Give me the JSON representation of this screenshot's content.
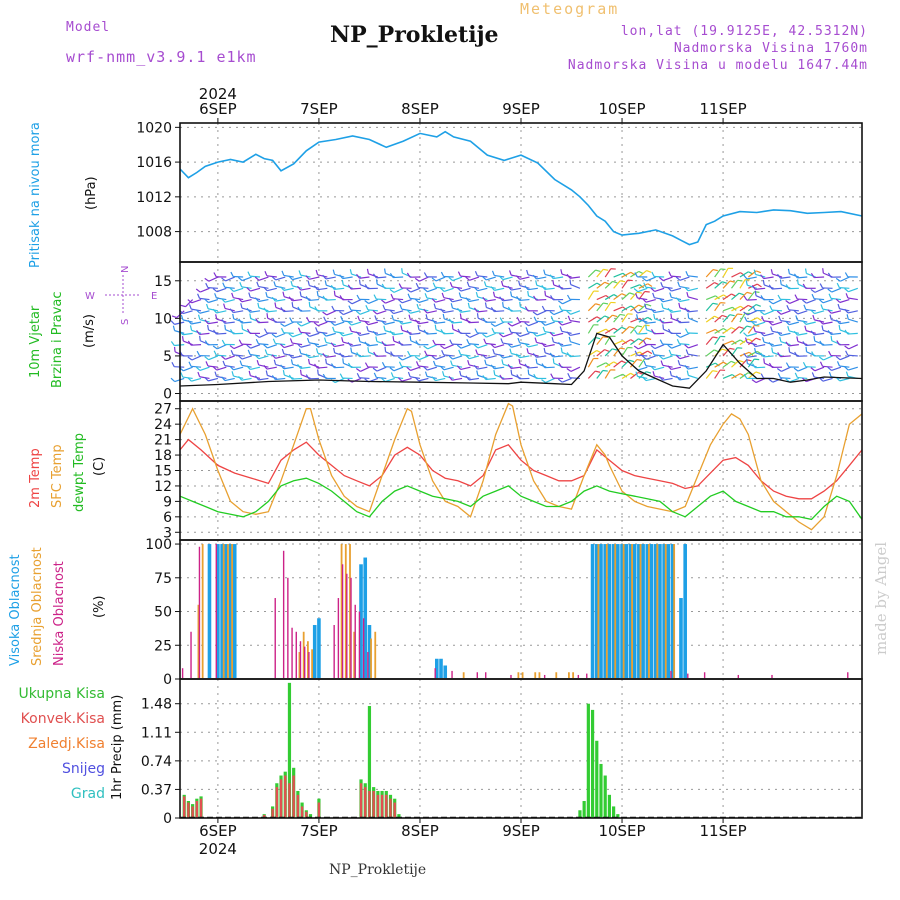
{
  "header": {
    "title": "NP_Prokletije",
    "model_label": "Model",
    "model_name": "wrf-nmm_v3.9.1 e1km",
    "meteogram_label": "Meteogram",
    "lonlat": "lon,lat (19.9125E, 42.5312N)",
    "elevation": "Nadmorska Visina 1760m",
    "model_elevation": "Nadmorska Visina u modelu 1647.44m",
    "watermark": "made by Angel",
    "footer": "NP_Prokletije"
  },
  "colors": {
    "pressure": "#1ea0e6",
    "temp2m": "#ee4444",
    "sfc": "#e8a030",
    "dewpt": "#22cc22",
    "high_cloud": "#1ea0e6",
    "mid_cloud": "#e8a030",
    "low_cloud": "#cc2288",
    "total_precip": "#33cc33",
    "conv_precip": "#e05050"
  },
  "x_axis": {
    "year": "2024",
    "day_ticks": [
      "6SEP",
      "7SEP",
      "8SEP",
      "9SEP",
      "10SEP",
      "11SEP"
    ],
    "range_hours": [
      -9,
      153
    ],
    "tick_hours": [
      0,
      24,
      48,
      72,
      96,
      120
    ]
  },
  "compass": {
    "n": "N",
    "s": "S",
    "e": "E",
    "w": "W"
  },
  "chart_data": [
    {
      "type": "line",
      "panel": "pressure",
      "ylabel_main": "Pritisak na nivou mora",
      "ylabel_unit": "(hPa)",
      "ylim": [
        1004.5,
        1020.5
      ],
      "yticks": [
        1008,
        1012,
        1016,
        1020
      ],
      "series": [
        {
          "name": "Pritisak na nivou mora",
          "x": [
            -9,
            -7,
            -5,
            -3,
            0,
            3,
            6,
            9,
            11,
            13,
            15,
            18,
            21,
            24,
            28,
            32,
            36,
            40,
            44,
            48,
            52,
            54,
            56,
            60,
            64,
            68,
            72,
            76,
            80,
            84,
            86,
            88,
            90,
            92,
            94,
            96,
            100,
            104,
            108,
            110,
            112,
            114,
            116,
            118,
            120,
            124,
            128,
            132,
            136,
            140,
            144,
            148,
            153
          ],
          "y": [
            1015.2,
            1014.2,
            1014.8,
            1015.5,
            1016.0,
            1016.3,
            1016.0,
            1016.9,
            1016.4,
            1016.2,
            1015.0,
            1015.8,
            1017.3,
            1018.3,
            1018.6,
            1019.0,
            1018.6,
            1017.7,
            1018.4,
            1019.3,
            1018.9,
            1019.5,
            1018.9,
            1018.4,
            1016.8,
            1016.2,
            1016.8,
            1015.9,
            1014.0,
            1012.8,
            1012.0,
            1011.0,
            1009.8,
            1009.2,
            1008.0,
            1007.6,
            1007.8,
            1008.2,
            1007.5,
            1007.0,
            1006.5,
            1006.8,
            1008.8,
            1009.2,
            1009.8,
            1010.3,
            1010.2,
            1010.5,
            1010.4,
            1010.1,
            1010.2,
            1010.3,
            1009.8
          ]
        }
      ]
    },
    {
      "type": "line",
      "panel": "wind",
      "ylabel_main": "10m Vjetar",
      "ylabel_sub": "Brzina i Pravac",
      "ylabel_unit": "(m/s)",
      "ylim": [
        -1,
        17.5
      ],
      "yticks": [
        0,
        5,
        10,
        15
      ],
      "series": [
        {
          "name": "wind_speed",
          "x": [
            -9,
            0,
            12,
            24,
            36,
            48,
            60,
            69,
            72,
            80,
            84,
            87,
            90,
            93,
            96,
            100,
            104,
            108,
            112,
            116,
            120,
            124,
            128,
            132,
            136,
            140,
            144,
            153
          ],
          "y": [
            1.0,
            1.2,
            1.6,
            1.8,
            1.6,
            1.5,
            1.4,
            1.3,
            1.5,
            1.3,
            1.2,
            3.0,
            8.0,
            7.5,
            5.0,
            3.0,
            2.0,
            1.0,
            0.7,
            3.0,
            6.5,
            4.0,
            2.0,
            2.0,
            1.5,
            1.8,
            2.2,
            2.0
          ]
        }
      ],
      "barb_rows": [
        15.5,
        14,
        12.5,
        11,
        9.5,
        8,
        6.5,
        5,
        3.5,
        2
      ]
    },
    {
      "type": "line",
      "panel": "temperature",
      "ylabel_lines": [
        "2m Temp",
        "SFC Temp",
        "dewpt Temp"
      ],
      "ylabel_unit": "(C)",
      "ylim": [
        1.5,
        28.5
      ],
      "yticks": [
        3,
        6,
        9,
        12,
        15,
        18,
        21,
        24,
        27
      ],
      "series": [
        {
          "name": "2m Temp",
          "x": [
            -9,
            -7,
            -4,
            0,
            4,
            8,
            12,
            15,
            18,
            21,
            24,
            27,
            30,
            33,
            36,
            39,
            42,
            45,
            48,
            51,
            54,
            57,
            60,
            63,
            66,
            69,
            72,
            75,
            78,
            81,
            84,
            87,
            90,
            93,
            96,
            99,
            102,
            105,
            108,
            111,
            114,
            117,
            120,
            123,
            126,
            129,
            132,
            135,
            138,
            141,
            144,
            147,
            150,
            153
          ],
          "y": [
            19,
            21,
            19,
            16,
            14.5,
            13.5,
            12.5,
            17,
            19,
            20.5,
            18,
            16,
            14,
            13,
            12,
            14,
            18,
            19.5,
            18,
            15,
            13.5,
            13,
            12,
            14,
            19,
            20,
            17,
            15,
            14,
            13,
            13,
            14,
            19,
            17,
            15,
            14,
            13.5,
            13,
            12.5,
            11.5,
            12,
            14.5,
            17,
            17.5,
            16,
            13,
            11,
            10,
            9.5,
            9.5,
            11,
            13,
            16,
            19
          ]
        },
        {
          "name": "SFC Temp",
          "x": [
            -9,
            -6,
            -3,
            0,
            3,
            6,
            9,
            12,
            15,
            18,
            21,
            22,
            24,
            27,
            30,
            33,
            36,
            39,
            42,
            45,
            46,
            48,
            51,
            54,
            57,
            60,
            63,
            66,
            69,
            70,
            72,
            75,
            78,
            81,
            84,
            87,
            90,
            92,
            93,
            96,
            99,
            102,
            105,
            108,
            111,
            114,
            117,
            120,
            122,
            124,
            126,
            129,
            132,
            135,
            138,
            141,
            144,
            147,
            150,
            153
          ],
          "y": [
            22,
            27,
            22,
            15,
            9,
            7,
            6.5,
            7,
            13,
            20,
            27,
            27,
            21,
            14,
            10,
            8,
            7,
            14,
            21,
            27,
            26.5,
            20,
            13,
            9,
            8,
            6,
            13,
            22,
            28,
            27.5,
            20,
            13,
            9,
            8,
            7.5,
            14,
            20,
            18,
            16,
            11,
            9,
            8,
            7.5,
            7,
            8,
            14,
            20,
            24,
            26,
            25,
            22,
            13,
            9,
            7,
            5,
            3.5,
            6,
            14,
            24,
            26
          ]
        },
        {
          "name": "dewpt Temp",
          "x": [
            -9,
            -6,
            -3,
            0,
            3,
            6,
            9,
            12,
            15,
            18,
            21,
            24,
            27,
            30,
            33,
            36,
            39,
            42,
            45,
            48,
            51,
            54,
            57,
            60,
            63,
            66,
            69,
            72,
            75,
            78,
            81,
            84,
            87,
            90,
            93,
            96,
            99,
            102,
            105,
            108,
            111,
            114,
            117,
            120,
            123,
            126,
            129,
            132,
            135,
            138,
            141,
            144,
            147,
            150,
            153
          ],
          "y": [
            10,
            9,
            8,
            7,
            6.5,
            6,
            7,
            9,
            12,
            13,
            13.5,
            12.5,
            11,
            9,
            7,
            6,
            9,
            11,
            12,
            11,
            10,
            9.5,
            9,
            8,
            10,
            11,
            12,
            10,
            9,
            8,
            8,
            9,
            11,
            12,
            11,
            10.5,
            10,
            9.5,
            9,
            7,
            6,
            8,
            10,
            11,
            9,
            8,
            7,
            7,
            6,
            6,
            5.5,
            8,
            10,
            9,
            5.5
          ]
        }
      ]
    },
    {
      "type": "bar",
      "panel": "cloud",
      "ylabel_lines": [
        "Visoka Oblacnost",
        "Srednja Oblacnost",
        "Niska Oblacnost"
      ],
      "ylabel_unit": "(%)",
      "ylim": [
        0,
        103
      ],
      "yticks": [
        0,
        25,
        50,
        75,
        100
      ],
      "series": [
        {
          "name": "Visoka Oblacnost",
          "x": [
            -2,
            0,
            1,
            2,
            3,
            4,
            23,
            24,
            34,
            35,
            36,
            52,
            53,
            54,
            89,
            90,
            91,
            92,
            93,
            94,
            95,
            96,
            97,
            98,
            99,
            100,
            101,
            102,
            103,
            104,
            105,
            106,
            107,
            108,
            110,
            111
          ],
          "y": [
            100,
            100,
            100,
            100,
            100,
            100,
            40,
            45,
            85,
            90,
            40,
            15,
            15,
            10,
            100,
            100,
            100,
            100,
            100,
            100,
            100,
            100,
            100,
            100,
            100,
            100,
            100,
            100,
            100,
            100,
            100,
            100,
            100,
            100,
            60,
            100
          ]
        },
        {
          "name": "Srednja Oblacnost",
          "x": [
            -5,
            -4,
            1,
            2,
            3,
            19,
            20,
            21,
            22,
            29,
            30,
            31,
            32,
            36,
            37,
            58,
            71,
            72,
            75,
            76,
            80,
            83,
            84,
            90,
            92,
            94,
            96,
            98,
            100,
            102,
            104,
            106,
            108
          ],
          "y": [
            55,
            100,
            100,
            100,
            100,
            20,
            35,
            28,
            22,
            100,
            100,
            100,
            35,
            30,
            35,
            5,
            5,
            5,
            5,
            5,
            5,
            5,
            5,
            100,
            100,
            100,
            100,
            100,
            100,
            100,
            100,
            100,
            100
          ]
        },
        {
          "name": "Niska Oblacnost",
          "x": [
            -8,
            -6,
            -4,
            0,
            14,
            16,
            17,
            18,
            19,
            20,
            21,
            22,
            28,
            29,
            30,
            31,
            32,
            33,
            34,
            35,
            36,
            52,
            56,
            62,
            64,
            70,
            78,
            86,
            88,
            108,
            112,
            116,
            124,
            132,
            150
          ],
          "y": [
            8,
            35,
            98,
            100,
            60,
            95,
            75,
            38,
            35,
            28,
            24,
            20,
            40,
            60,
            85,
            78,
            75,
            55,
            50,
            45,
            20,
            8,
            6,
            5,
            5,
            3,
            3,
            3,
            4,
            6,
            4,
            5,
            3,
            3,
            5
          ]
        }
      ]
    },
    {
      "type": "bar",
      "panel": "precip",
      "legend_lines": [
        "Ukupna Kisa",
        "Konvek.Kisa",
        "Zaledj.Kisa",
        "Snijeg",
        "Grad"
      ],
      "ylabel_unit": "1hr Precip (mm)",
      "ylim": [
        0,
        1.8
      ],
      "yticks": [
        0,
        0.37,
        0.74,
        1.11,
        1.48
      ],
      "series": [
        {
          "name": "Ukupna Kisa",
          "x": [
            -8,
            -7,
            -6,
            -5,
            -4,
            11,
            13,
            14,
            15,
            16,
            17,
            18,
            19,
            20,
            21,
            22,
            24,
            34,
            35,
            36,
            37,
            38,
            39,
            40,
            41,
            42,
            43,
            86,
            87,
            88,
            89,
            90,
            91,
            92,
            93,
            94,
            95
          ],
          "y": [
            0.3,
            0.22,
            0.18,
            0.25,
            0.28,
            0.05,
            0.15,
            0.45,
            0.55,
            0.6,
            1.75,
            0.65,
            0.35,
            0.2,
            0.1,
            0.05,
            0.25,
            0.5,
            0.45,
            1.45,
            0.4,
            0.35,
            0.35,
            0.35,
            0.3,
            0.25,
            0.05,
            0.1,
            0.22,
            1.48,
            1.4,
            1.0,
            0.7,
            0.55,
            0.3,
            0.15,
            0.05
          ]
        },
        {
          "name": "Konvek.Kisa",
          "x": [
            -8,
            -7,
            -6,
            -5,
            -4,
            11,
            13,
            14,
            15,
            16,
            17,
            18,
            19,
            20,
            21,
            24,
            34,
            35,
            36,
            37,
            38,
            39,
            40,
            41,
            42
          ],
          "y": [
            0.28,
            0.2,
            0.15,
            0.22,
            0.25,
            0.04,
            0.12,
            0.4,
            0.5,
            0.55,
            0.45,
            0.55,
            0.3,
            0.15,
            0.08,
            0.2,
            0.45,
            0.4,
            0.35,
            0.35,
            0.3,
            0.3,
            0.3,
            0.25,
            0.2
          ]
        }
      ]
    }
  ]
}
